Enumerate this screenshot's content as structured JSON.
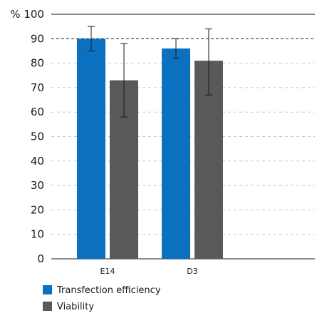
{
  "chart_data": {
    "type": "bar",
    "categories": [
      "E14",
      "D3"
    ],
    "series": [
      {
        "name": "Transfection efficiency",
        "color": "#0a70bf",
        "values": [
          90,
          86
        ],
        "error_low": [
          85,
          82
        ],
        "error_high": [
          95,
          90
        ]
      },
      {
        "name": "Viability",
        "color": "#595959",
        "values": [
          73,
          81
        ],
        "error_low": [
          58,
          67
        ],
        "error_high": [
          88,
          94
        ]
      }
    ],
    "ylim": [
      0,
      100
    ],
    "yticks": [
      "0",
      "10",
      "20",
      "30",
      "40",
      "50",
      "60",
      "70",
      "80",
      "90",
      "100"
    ],
    "y_unit": "%",
    "reference_line": 90,
    "grid": "dashed horizontal",
    "legend": "bottom-left"
  }
}
